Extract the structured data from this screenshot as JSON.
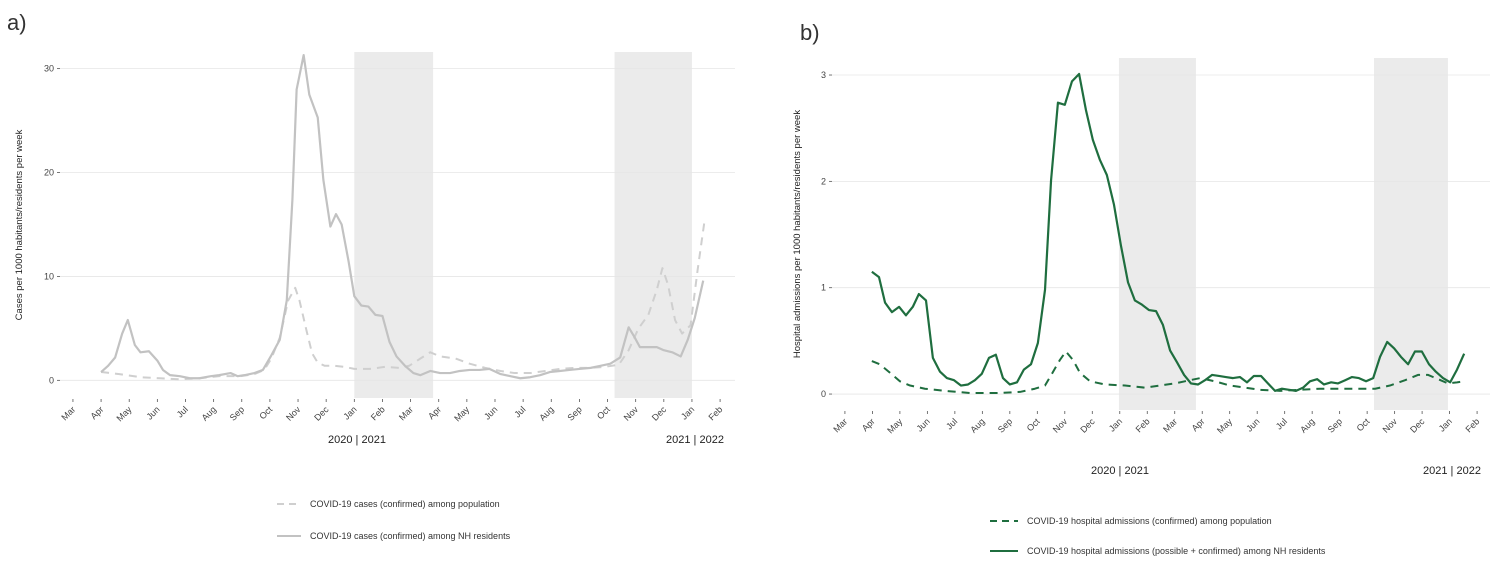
{
  "chart_data": [
    {
      "type": "line",
      "panel_label": "a)",
      "ylabel": "Cases per 1000 habitants/residents per week",
      "xlim": [
        -0.46,
        23.53
      ],
      "ylim": [
        -1.7,
        31.6
      ],
      "yticks": [
        0,
        10,
        20,
        30
      ],
      "grid": true,
      "xticks": [
        {
          "value": 0,
          "label": "Mar"
        },
        {
          "value": 1,
          "label": "Apr"
        },
        {
          "value": 2,
          "label": "May"
        },
        {
          "value": 3,
          "label": "Jun"
        },
        {
          "value": 4,
          "label": "Jul"
        },
        {
          "value": 5,
          "label": "Aug"
        },
        {
          "value": 6,
          "label": "Sep"
        },
        {
          "value": 7,
          "label": "Oct"
        },
        {
          "value": 8,
          "label": "Nov"
        },
        {
          "value": 9,
          "label": "Dec"
        },
        {
          "value": 10,
          "label": "Jan"
        },
        {
          "value": 11,
          "label": "Feb"
        },
        {
          "value": 12,
          "label": "Mar"
        },
        {
          "value": 13,
          "label": "Apr"
        },
        {
          "value": 14,
          "label": "May"
        },
        {
          "value": 15,
          "label": "Jun"
        },
        {
          "value": 16,
          "label": "Jul"
        },
        {
          "value": 17,
          "label": "Aug"
        },
        {
          "value": 18,
          "label": "Sep"
        },
        {
          "value": 19,
          "label": "Oct"
        },
        {
          "value": 20,
          "label": "Nov"
        },
        {
          "value": 21,
          "label": "Dec"
        },
        {
          "value": 22,
          "label": "Jan"
        },
        {
          "value": 23,
          "label": "Feb"
        }
      ],
      "shaded_periods": [
        [
          10,
          12.8
        ],
        [
          19.25,
          22
        ]
      ],
      "shade_color": "#ebebeb",
      "annotations": [
        "2020 | 2021",
        "2021 | 2022"
      ],
      "series": [
        {
          "name": "COVID-19 cases (confirmed) among population",
          "color": "#cfcfcf",
          "dash": "dashed",
          "x": [
            1.0,
            1.65,
            2.4,
            3.1,
            3.8,
            4.5,
            5.2,
            5.95,
            6.45,
            6.8,
            7.05,
            7.35,
            7.65,
            7.9,
            8.05,
            8.3,
            8.5,
            8.7,
            8.95,
            9.3,
            9.65,
            10.0,
            10.55,
            11.1,
            11.6,
            11.95,
            12.35,
            12.7,
            13.05,
            13.6,
            14.1,
            14.65,
            15.2,
            15.7,
            16.25,
            16.8,
            17.3,
            17.85,
            18.4,
            18.9,
            19.4,
            19.75,
            20.1,
            20.45,
            20.75,
            20.95,
            21.15,
            21.4,
            21.65,
            21.95,
            22.2,
            22.45
          ],
          "values": [
            0.8,
            0.6,
            0.3,
            0.2,
            0.1,
            0.2,
            0.4,
            0.4,
            0.6,
            1.0,
            2.1,
            4.1,
            7.7,
            8.9,
            7.7,
            4.8,
            2.6,
            1.7,
            1.4,
            1.4,
            1.3,
            1.1,
            1.1,
            1.3,
            1.2,
            1.4,
            2.1,
            2.7,
            2.3,
            2.1,
            1.6,
            1.2,
            0.9,
            0.7,
            0.7,
            0.9,
            1.1,
            1.2,
            1.2,
            1.3,
            1.5,
            2.9,
            5.0,
            6.3,
            8.7,
            10.8,
            9.2,
            5.8,
            4.5,
            5.3,
            10.6,
            15.4
          ]
        },
        {
          "name": "COVID-19 cases (confirmed) among NH residents",
          "color": "#c2c2c2",
          "dash": "solid",
          "x": [
            1.0,
            1.25,
            1.5,
            1.75,
            1.95,
            2.2,
            2.4,
            2.7,
            3.0,
            3.2,
            3.45,
            3.8,
            4.15,
            4.5,
            4.9,
            5.2,
            5.6,
            5.85,
            6.1,
            6.45,
            6.75,
            7.05,
            7.35,
            7.6,
            7.8,
            7.95,
            8.2,
            8.4,
            8.7,
            8.9,
            9.15,
            9.35,
            9.55,
            9.8,
            10.0,
            10.25,
            10.5,
            10.75,
            11.0,
            11.25,
            11.5,
            11.8,
            12.1,
            12.35,
            12.7,
            13.05,
            13.4,
            13.75,
            14.1,
            14.45,
            14.8,
            15.2,
            15.55,
            15.9,
            16.25,
            16.6,
            16.95,
            17.3,
            17.65,
            18.0,
            18.4,
            18.75,
            19.1,
            19.45,
            19.75,
            19.95,
            20.15,
            20.45,
            20.75,
            21.0,
            21.3,
            21.6,
            21.85,
            22.1,
            22.4
          ],
          "values": [
            0.8,
            1.4,
            2.2,
            4.5,
            5.8,
            3.4,
            2.7,
            2.8,
            1.9,
            1.0,
            0.5,
            0.4,
            0.2,
            0.2,
            0.4,
            0.5,
            0.7,
            0.4,
            0.5,
            0.7,
            1.0,
            2.4,
            3.9,
            7.7,
            17.4,
            28.0,
            31.3,
            27.5,
            25.3,
            19.3,
            14.8,
            16.0,
            15.0,
            11.4,
            8.1,
            7.2,
            7.1,
            6.3,
            6.2,
            3.7,
            2.3,
            1.4,
            0.7,
            0.5,
            0.9,
            0.7,
            0.7,
            0.9,
            1.0,
            1.0,
            1.1,
            0.6,
            0.4,
            0.2,
            0.3,
            0.5,
            0.8,
            0.9,
            1.0,
            1.1,
            1.2,
            1.4,
            1.6,
            2.2,
            5.1,
            4.2,
            3.2,
            3.2,
            3.2,
            2.9,
            2.7,
            2.3,
            3.9,
            6.0,
            9.6
          ]
        }
      ]
    },
    {
      "type": "line",
      "panel_label": "b)",
      "ylabel": "Hospital admissions per 1000 habitants/residents per week",
      "xlim": [
        -0.47,
        23.47
      ],
      "ylim": [
        -0.15,
        3.16
      ],
      "yticks": [
        0,
        1,
        2,
        3
      ],
      "grid": true,
      "xticks": [
        {
          "value": 0,
          "label": "Mar"
        },
        {
          "value": 1,
          "label": "Apr"
        },
        {
          "value": 2,
          "label": "May"
        },
        {
          "value": 3,
          "label": "Jun"
        },
        {
          "value": 4,
          "label": "Jul"
        },
        {
          "value": 5,
          "label": "Aug"
        },
        {
          "value": 6,
          "label": "Sep"
        },
        {
          "value": 7,
          "label": "Oct"
        },
        {
          "value": 8,
          "label": "Nov"
        },
        {
          "value": 9,
          "label": "Dec"
        },
        {
          "value": 10,
          "label": "Jan"
        },
        {
          "value": 11,
          "label": "Feb"
        },
        {
          "value": 12,
          "label": "Mar"
        },
        {
          "value": 13,
          "label": "Apr"
        },
        {
          "value": 14,
          "label": "May"
        },
        {
          "value": 15,
          "label": "Jun"
        },
        {
          "value": 16,
          "label": "Jul"
        },
        {
          "value": 17,
          "label": "Aug"
        },
        {
          "value": 18,
          "label": "Sep"
        },
        {
          "value": 19,
          "label": "Oct"
        },
        {
          "value": 20,
          "label": "Nov"
        },
        {
          "value": 21,
          "label": "Dec"
        },
        {
          "value": 22,
          "label": "Jan"
        },
        {
          "value": 23,
          "label": "Feb"
        }
      ],
      "shaded_periods": [
        [
          9.97,
          12.77
        ],
        [
          19.25,
          21.94
        ]
      ],
      "shade_color": "#ebebeb",
      "annotations": [
        "2020 | 2021",
        "2021 | 2022"
      ],
      "series": [
        {
          "name": "COVID-19 hospital admissions (confirmed) among population",
          "color": "#1f6e3f",
          "dash": "dashed",
          "x": [
            0.98,
            1.27,
            1.64,
            2.0,
            2.37,
            2.91,
            3.64,
            4.55,
            5.64,
            6.37,
            6.91,
            7.28,
            7.53,
            7.82,
            8.04,
            8.3,
            8.55,
            8.92,
            9.46,
            10.19,
            10.92,
            11.46,
            12.01,
            12.55,
            12.92,
            13.46,
            14.01,
            14.56,
            15.1,
            15.83,
            16.56,
            17.29,
            18.01,
            18.74,
            19.29,
            19.83,
            20.38,
            20.85,
            21.22,
            21.58,
            21.94,
            22.27,
            22.53
          ],
          "values": [
            0.31,
            0.28,
            0.2,
            0.12,
            0.08,
            0.05,
            0.03,
            0.01,
            0.01,
            0.02,
            0.05,
            0.08,
            0.19,
            0.32,
            0.4,
            0.32,
            0.2,
            0.12,
            0.09,
            0.08,
            0.06,
            0.08,
            0.1,
            0.13,
            0.15,
            0.12,
            0.08,
            0.06,
            0.04,
            0.03,
            0.04,
            0.05,
            0.05,
            0.05,
            0.05,
            0.08,
            0.13,
            0.18,
            0.18,
            0.14,
            0.1,
            0.11,
            0.12
          ]
        },
        {
          "name": "COVID-19 hospital admissions (possible + confirmed) among NH residents",
          "color": "#1f6e3f",
          "dash": "solid",
          "x": [
            0.98,
            1.24,
            1.46,
            1.71,
            1.97,
            2.22,
            2.47,
            2.69,
            2.95,
            3.2,
            3.46,
            3.71,
            3.97,
            4.22,
            4.48,
            4.73,
            4.98,
            5.24,
            5.49,
            5.75,
            6.0,
            6.26,
            6.51,
            6.77,
            7.02,
            7.28,
            7.5,
            7.75,
            8.0,
            8.26,
            8.52,
            8.77,
            9.02,
            9.28,
            9.53,
            9.79,
            10.04,
            10.3,
            10.55,
            10.81,
            11.06,
            11.32,
            11.57,
            11.83,
            12.08,
            12.34,
            12.59,
            12.85,
            13.1,
            13.36,
            13.61,
            13.86,
            14.12,
            14.37,
            14.63,
            14.88,
            15.14,
            15.39,
            15.65,
            15.9,
            16.16,
            16.41,
            16.67,
            16.92,
            17.18,
            17.43,
            17.69,
            17.94,
            18.2,
            18.45,
            18.7,
            18.96,
            19.22,
            19.47,
            19.73,
            19.98,
            20.23,
            20.49,
            20.74,
            20.99,
            21.25,
            21.5,
            21.76,
            22.02,
            22.27,
            22.53
          ],
          "values": [
            1.15,
            1.1,
            0.86,
            0.77,
            0.82,
            0.74,
            0.82,
            0.94,
            0.88,
            0.34,
            0.21,
            0.15,
            0.13,
            0.08,
            0.09,
            0.13,
            0.19,
            0.34,
            0.37,
            0.15,
            0.09,
            0.11,
            0.23,
            0.28,
            0.48,
            0.98,
            2.01,
            2.74,
            2.72,
            2.94,
            3.01,
            2.67,
            2.39,
            2.2,
            2.06,
            1.78,
            1.4,
            1.05,
            0.88,
            0.84,
            0.79,
            0.78,
            0.65,
            0.41,
            0.3,
            0.18,
            0.1,
            0.09,
            0.13,
            0.18,
            0.17,
            0.16,
            0.15,
            0.16,
            0.11,
            0.17,
            0.17,
            0.1,
            0.03,
            0.05,
            0.04,
            0.03,
            0.06,
            0.12,
            0.14,
            0.09,
            0.11,
            0.1,
            0.13,
            0.16,
            0.15,
            0.12,
            0.15,
            0.35,
            0.49,
            0.43,
            0.35,
            0.28,
            0.4,
            0.4,
            0.28,
            0.21,
            0.15,
            0.11,
            0.23,
            0.38
          ]
        }
      ]
    }
  ]
}
